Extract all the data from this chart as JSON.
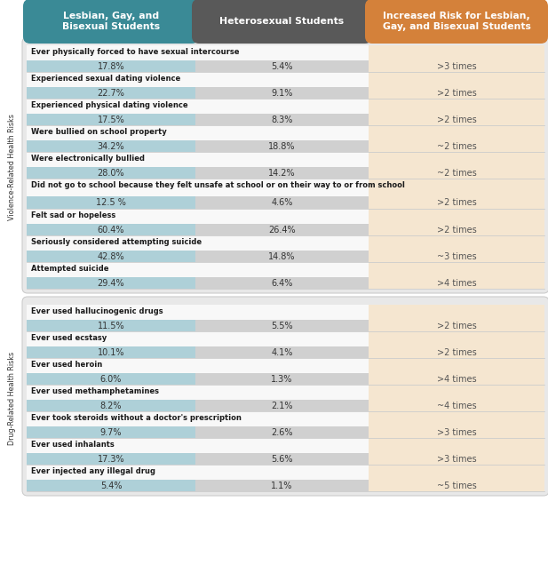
{
  "header_col1": "Lesbian, Gay, and\nBisexual Students",
  "header_col2": "Heterosexual Students",
  "header_col3": "Increased Risk for Lesbian,\nGay, and Bisexual Students",
  "col1_color": "#3a8a96",
  "col2_color": "#595959",
  "col3_color": "#d4813a",
  "header_text_color": "#ffffff",
  "section1_label": "Violence-Related Health Risks",
  "section2_label": "Drug-Related Health Risks",
  "section_bg": "#e8e8e8",
  "row_bg": "#ececec",
  "col1_bar_color": "#aed0d8",
  "col2_bar_color": "#d0d0d0",
  "col3_bg": "#f5e6d0",
  "val_color": "#333333",
  "label_color": "#1a1a1a",
  "violence_rows": [
    {
      "label": "Ever physically forced to have sexual intercourse",
      "val1": "17.8%",
      "val2": "5.4%",
      "val3": ">3 times"
    },
    {
      "label": "Experienced sexual dating violence",
      "val1": "22.7%",
      "val2": "9.1%",
      "val3": ">2 times"
    },
    {
      "label": "Experienced physical dating violence",
      "val1": "17.5%",
      "val2": "8.3%",
      "val3": ">2 times"
    },
    {
      "label": "Were bullied on school property",
      "val1": "34.2%",
      "val2": "18.8%",
      "val3": "~2 times"
    },
    {
      "label": "Were electronically bullied",
      "val1": "28.0%",
      "val2": "14.2%",
      "val3": "~2 times"
    },
    {
      "label": "Did not go to school because they felt unsafe at school or on their way to or from school",
      "val1": "12.5 %",
      "val2": "4.6%",
      "val3": ">2 times"
    },
    {
      "label": "Felt sad or hopeless",
      "val1": "60.4%",
      "val2": "26.4%",
      "val3": ">2 times"
    },
    {
      "label": "Seriously considered attempting suicide",
      "val1": "42.8%",
      "val2": "14.8%",
      "val3": "~3 times"
    },
    {
      "label": "Attempted suicide",
      "val1": "29.4%",
      "val2": "6.4%",
      "val3": ">4 times"
    }
  ],
  "drug_rows": [
    {
      "label": "Ever used hallucinogenic drugs",
      "val1": "11.5%",
      "val2": "5.5%",
      "val3": ">2 times"
    },
    {
      "label": "Ever used ecstasy",
      "val1": "10.1%",
      "val2": "4.1%",
      "val3": ">2 times"
    },
    {
      "label": "Ever used heroin",
      "val1": "6.0%",
      "val2": "1.3%",
      "val3": ">4 times"
    },
    {
      "label": "Ever used methamphetamines",
      "val1": "8.2%",
      "val2": "2.1%",
      "val3": "~4 times"
    },
    {
      "label": "Ever took steroids without a doctor's prescription",
      "val1": "9.7%",
      "val2": "2.6%",
      "val3": ">3 times"
    },
    {
      "label": "Ever used inhalants",
      "val1": "17.3%",
      "val2": "5.6%",
      "val3": ">3 times"
    },
    {
      "label": "Ever injected any illegal drug",
      "val1": "5.4%",
      "val2": "1.1%",
      "val3": "~5 times"
    }
  ]
}
